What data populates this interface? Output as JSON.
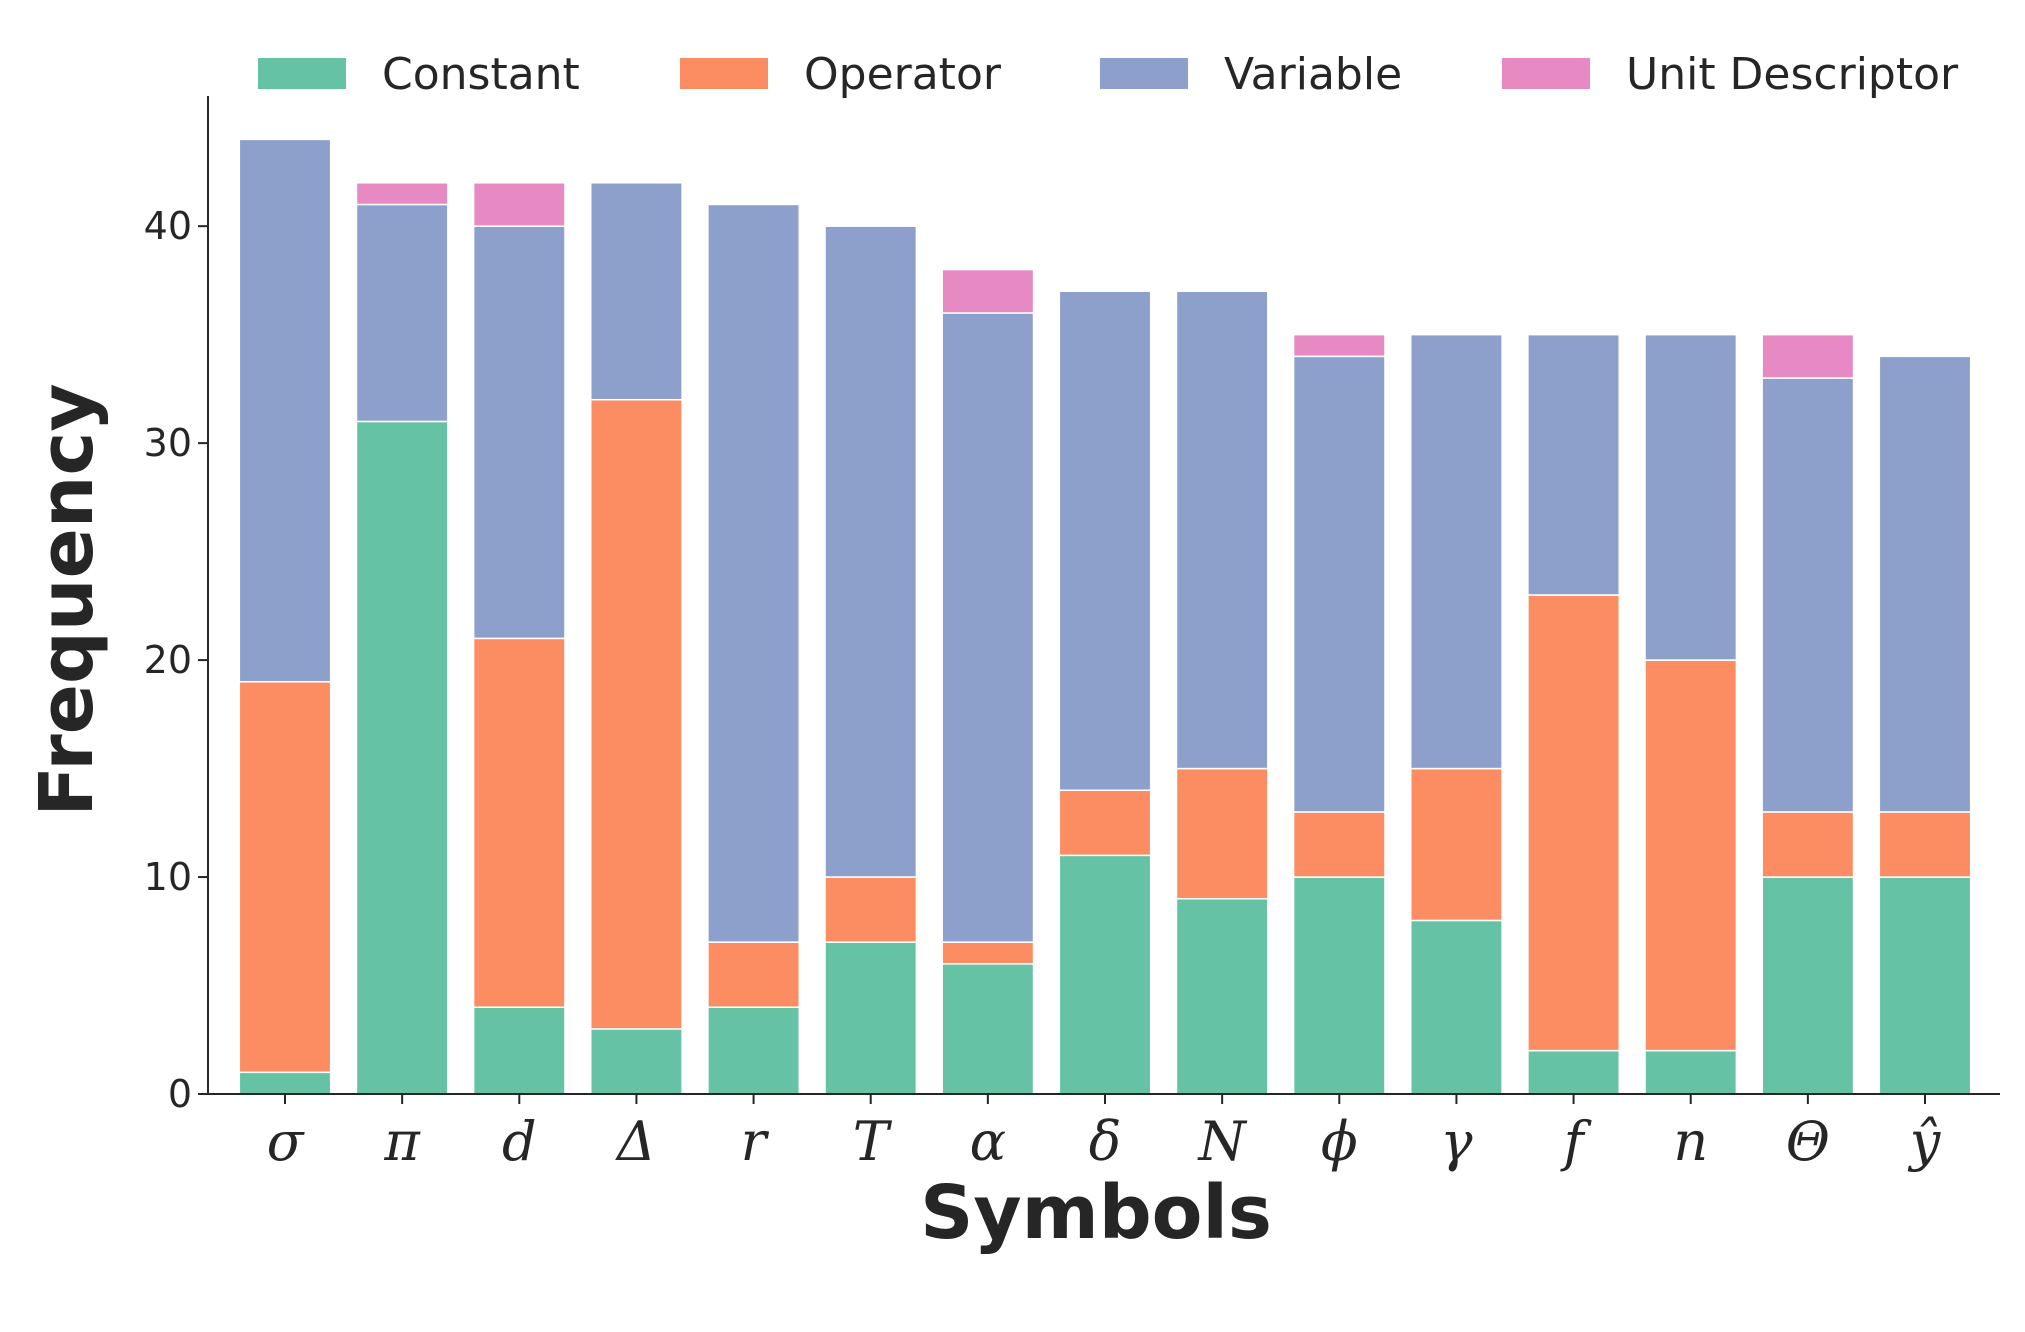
{
  "chart_data": {
    "type": "bar",
    "stacked": true,
    "title": "",
    "xlabel": "Symbols",
    "ylabel": "Frequency",
    "ylim": [
      0,
      46
    ],
    "yticks": [
      0,
      10,
      20,
      30,
      40
    ],
    "grid": false,
    "legend_position": "top",
    "categories": [
      "σ",
      "π",
      "d",
      "Δ",
      "r",
      "T",
      "α",
      "δ",
      "N",
      "ϕ",
      "γ",
      "f",
      "n",
      "Θ",
      "ŷ"
    ],
    "series": [
      {
        "name": "Constant",
        "color": "#66c2a5",
        "values": [
          1,
          31,
          4,
          3,
          4,
          7,
          6,
          11,
          9,
          10,
          8,
          2,
          2,
          10,
          10
        ]
      },
      {
        "name": "Operator",
        "color": "#fc8d62",
        "values": [
          18,
          0,
          17,
          29,
          3,
          3,
          1,
          3,
          6,
          3,
          7,
          21,
          18,
          3,
          3
        ]
      },
      {
        "name": "Variable",
        "color": "#8da0cb",
        "values": [
          25,
          10,
          19,
          10,
          34,
          30,
          29,
          23,
          22,
          21,
          20,
          12,
          15,
          20,
          21
        ]
      },
      {
        "name": "Unit Descriptor",
        "color": "#e78ac3",
        "values": [
          0,
          1,
          2,
          0,
          0,
          0,
          2,
          0,
          0,
          1,
          0,
          0,
          0,
          2,
          0
        ]
      }
    ]
  }
}
